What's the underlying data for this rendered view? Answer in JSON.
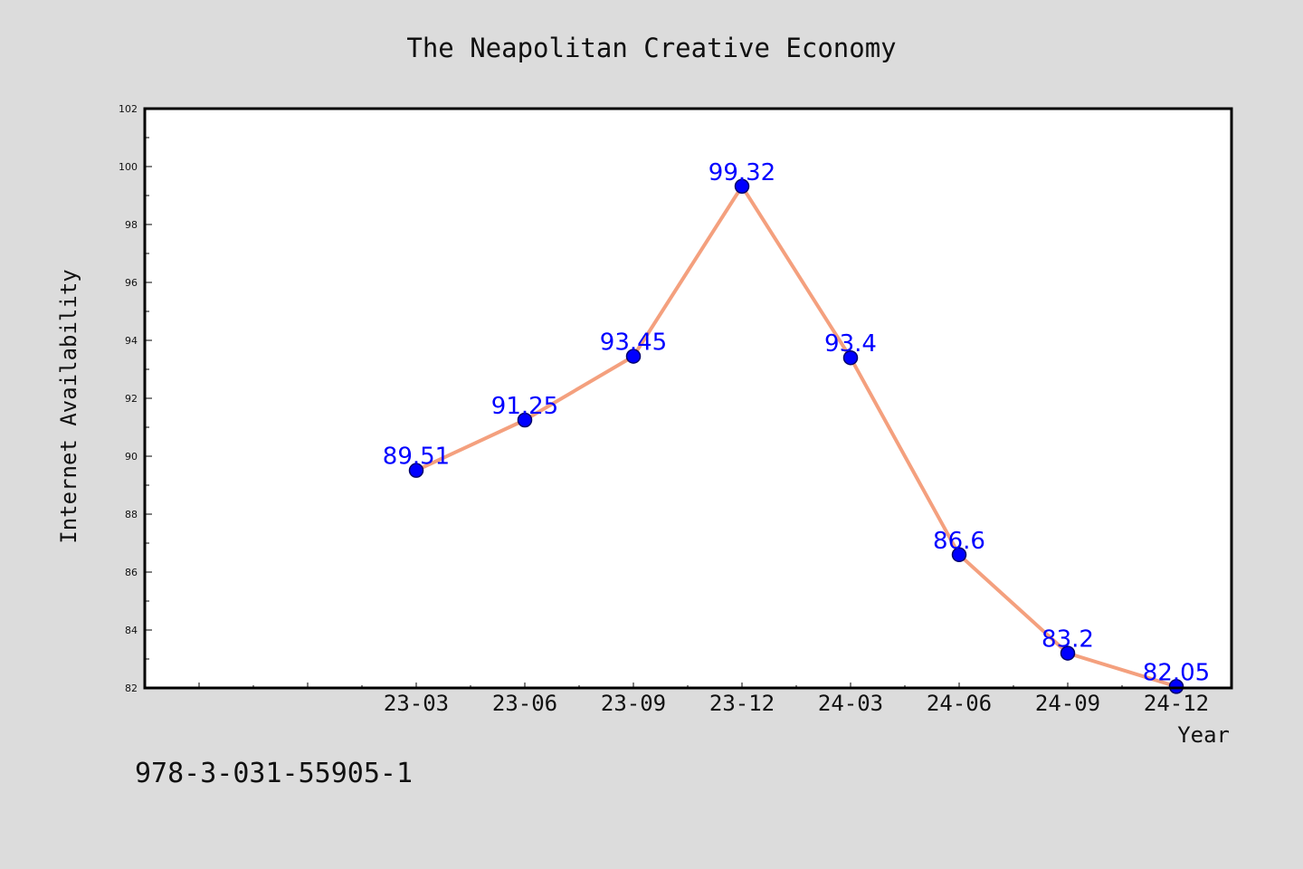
{
  "chart_data": {
    "type": "line",
    "title": "The Neapolitan Creative Economy",
    "xlabel": "Year",
    "ylabel": "Internet Availability",
    "categories": [
      "23-03",
      "23-06",
      "23-09",
      "23-12",
      "24-03",
      "24-06",
      "24-09",
      "24-12"
    ],
    "series": [
      {
        "values": [
          89.51,
          91.25,
          93.45,
          99.32,
          93.4,
          86.6,
          83.2,
          82.05
        ],
        "labels": [
          "89.51",
          "91.25",
          "93.45",
          "99.32",
          "93.4",
          "86.6",
          "83.2",
          "82.05"
        ]
      }
    ],
    "ylim": [
      82,
      102
    ],
    "yticks": [
      82,
      84,
      86,
      88,
      90,
      92,
      94,
      96,
      98,
      100,
      102
    ],
    "grid": false,
    "legend": "none",
    "colors": {
      "line": "#f4a07e",
      "marker": "#0000ff",
      "data_label": "#0000ff",
      "background": "#dcdcdc",
      "plot_background": "#ffffff"
    }
  },
  "footnote": "978-3-031-55905-1"
}
